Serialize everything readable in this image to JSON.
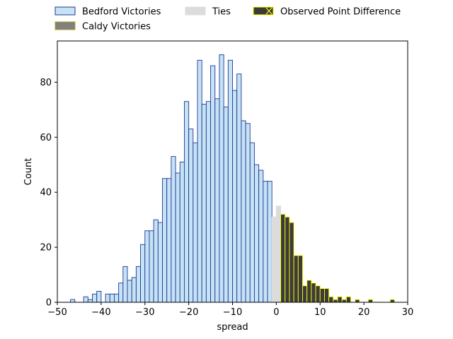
{
  "chart_data": {
    "type": "bar",
    "title": "",
    "xlabel": "spread",
    "ylabel": "Count",
    "xlim": [
      -50,
      30
    ],
    "ylim": [
      0,
      95
    ],
    "xticks": [
      -50,
      -40,
      -30,
      -20,
      -10,
      0,
      10,
      20,
      30
    ],
    "yticks": [
      0,
      20,
      40,
      60,
      80
    ],
    "grid": false,
    "legend_position": "top, outside plot",
    "bin_width": 1,
    "series": [
      {
        "name": "Bedford Victories",
        "color": "#c6e2f5",
        "edge_color": "#1f3a93",
        "bins": [
          {
            "x": -47,
            "count": 1
          },
          {
            "x": -44,
            "count": 2
          },
          {
            "x": -43,
            "count": 1
          },
          {
            "x": -42,
            "count": 3
          },
          {
            "x": -41,
            "count": 4
          },
          {
            "x": -39,
            "count": 3
          },
          {
            "x": -38,
            "count": 3
          },
          {
            "x": -37,
            "count": 3
          },
          {
            "x": -36,
            "count": 7
          },
          {
            "x": -35,
            "count": 13
          },
          {
            "x": -34,
            "count": 8
          },
          {
            "x": -33,
            "count": 9
          },
          {
            "x": -32,
            "count": 13
          },
          {
            "x": -31,
            "count": 21
          },
          {
            "x": -30,
            "count": 26
          },
          {
            "x": -29,
            "count": 26
          },
          {
            "x": -28,
            "count": 30
          },
          {
            "x": -27,
            "count": 29
          },
          {
            "x": -26,
            "count": 45
          },
          {
            "x": -25,
            "count": 45
          },
          {
            "x": -24,
            "count": 53
          },
          {
            "x": -23,
            "count": 47
          },
          {
            "x": -22,
            "count": 51
          },
          {
            "x": -21,
            "count": 73
          },
          {
            "x": -20,
            "count": 63
          },
          {
            "x": -19,
            "count": 58
          },
          {
            "x": -18,
            "count": 88
          },
          {
            "x": -17,
            "count": 72
          },
          {
            "x": -16,
            "count": 73
          },
          {
            "x": -15,
            "count": 86
          },
          {
            "x": -14,
            "count": 74
          },
          {
            "x": -13,
            "count": 90
          },
          {
            "x": -12,
            "count": 71
          },
          {
            "x": -11,
            "count": 88
          },
          {
            "x": -10,
            "count": 77
          },
          {
            "x": -9,
            "count": 83
          },
          {
            "x": -8,
            "count": 66
          },
          {
            "x": -7,
            "count": 65
          },
          {
            "x": -6,
            "count": 58
          },
          {
            "x": -5,
            "count": 50
          },
          {
            "x": -4,
            "count": 48
          },
          {
            "x": -3,
            "count": 44
          },
          {
            "x": -2,
            "count": 44
          }
        ]
      },
      {
        "name": "Ties",
        "color": "#dcdcdc",
        "edge_color": "#dcdcdc",
        "bins": [
          {
            "x": -1,
            "count": 31
          },
          {
            "x": 0,
            "count": 35
          }
        ]
      },
      {
        "name": "Caldy Victories",
        "color": "#808080",
        "edge_color": "#b5a51f",
        "bins": []
      },
      {
        "name": "Observed Point Difference",
        "color": "#3b3b3b",
        "edge_color": "#ffff00",
        "bins": [
          {
            "x": 1,
            "count": 32
          },
          {
            "x": 2,
            "count": 31
          },
          {
            "x": 3,
            "count": 29
          },
          {
            "x": 4,
            "count": 17
          },
          {
            "x": 5,
            "count": 17
          },
          {
            "x": 6,
            "count": 6
          },
          {
            "x": 7,
            "count": 8
          },
          {
            "x": 8,
            "count": 7
          },
          {
            "x": 9,
            "count": 6
          },
          {
            "x": 10,
            "count": 5
          },
          {
            "x": 11,
            "count": 5
          },
          {
            "x": 12,
            "count": 2
          },
          {
            "x": 13,
            "count": 1
          },
          {
            "x": 14,
            "count": 2
          },
          {
            "x": 15,
            "count": 1
          },
          {
            "x": 16,
            "count": 2
          },
          {
            "x": 18,
            "count": 1
          },
          {
            "x": 21,
            "count": 1
          },
          {
            "x": 26,
            "count": 1
          }
        ]
      }
    ]
  }
}
